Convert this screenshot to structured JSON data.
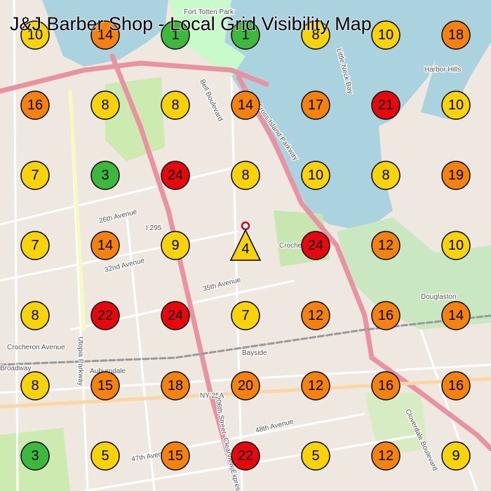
{
  "title": "J&J Barber Shop - Local Grid Visibility Map",
  "grid": {
    "rows": [
      [
        10,
        14,
        1,
        1,
        8,
        10,
        18
      ],
      [
        16,
        8,
        8,
        14,
        17,
        21,
        10
      ],
      [
        7,
        3,
        24,
        8,
        10,
        8,
        19
      ],
      [
        7,
        14,
        9,
        4,
        24,
        12,
        10
      ],
      [
        8,
        22,
        24,
        7,
        12,
        16,
        14
      ],
      [
        8,
        15,
        18,
        20,
        12,
        16,
        16
      ],
      [
        3,
        5,
        15,
        22,
        5,
        12,
        9
      ]
    ]
  },
  "map_labels": [
    "Fort Totten Park",
    "Harbor Hills",
    "Little Neck Bay",
    "Bell Boulevard",
    "Cross Island Parkway",
    "26th Avenue",
    "I 295",
    "32nd Avenue",
    "35th Avenue",
    "Crocheron Avenue",
    "Bayside",
    "Auburndale",
    "NY 25A",
    "48th Avenue",
    "47th Avenue",
    "Douglaston",
    "Utopia Parkway",
    "206th Street",
    "Clearview Expressway",
    "Broadway",
    "Crocheron Park",
    "Cloverdale Boulevard"
  ]
}
